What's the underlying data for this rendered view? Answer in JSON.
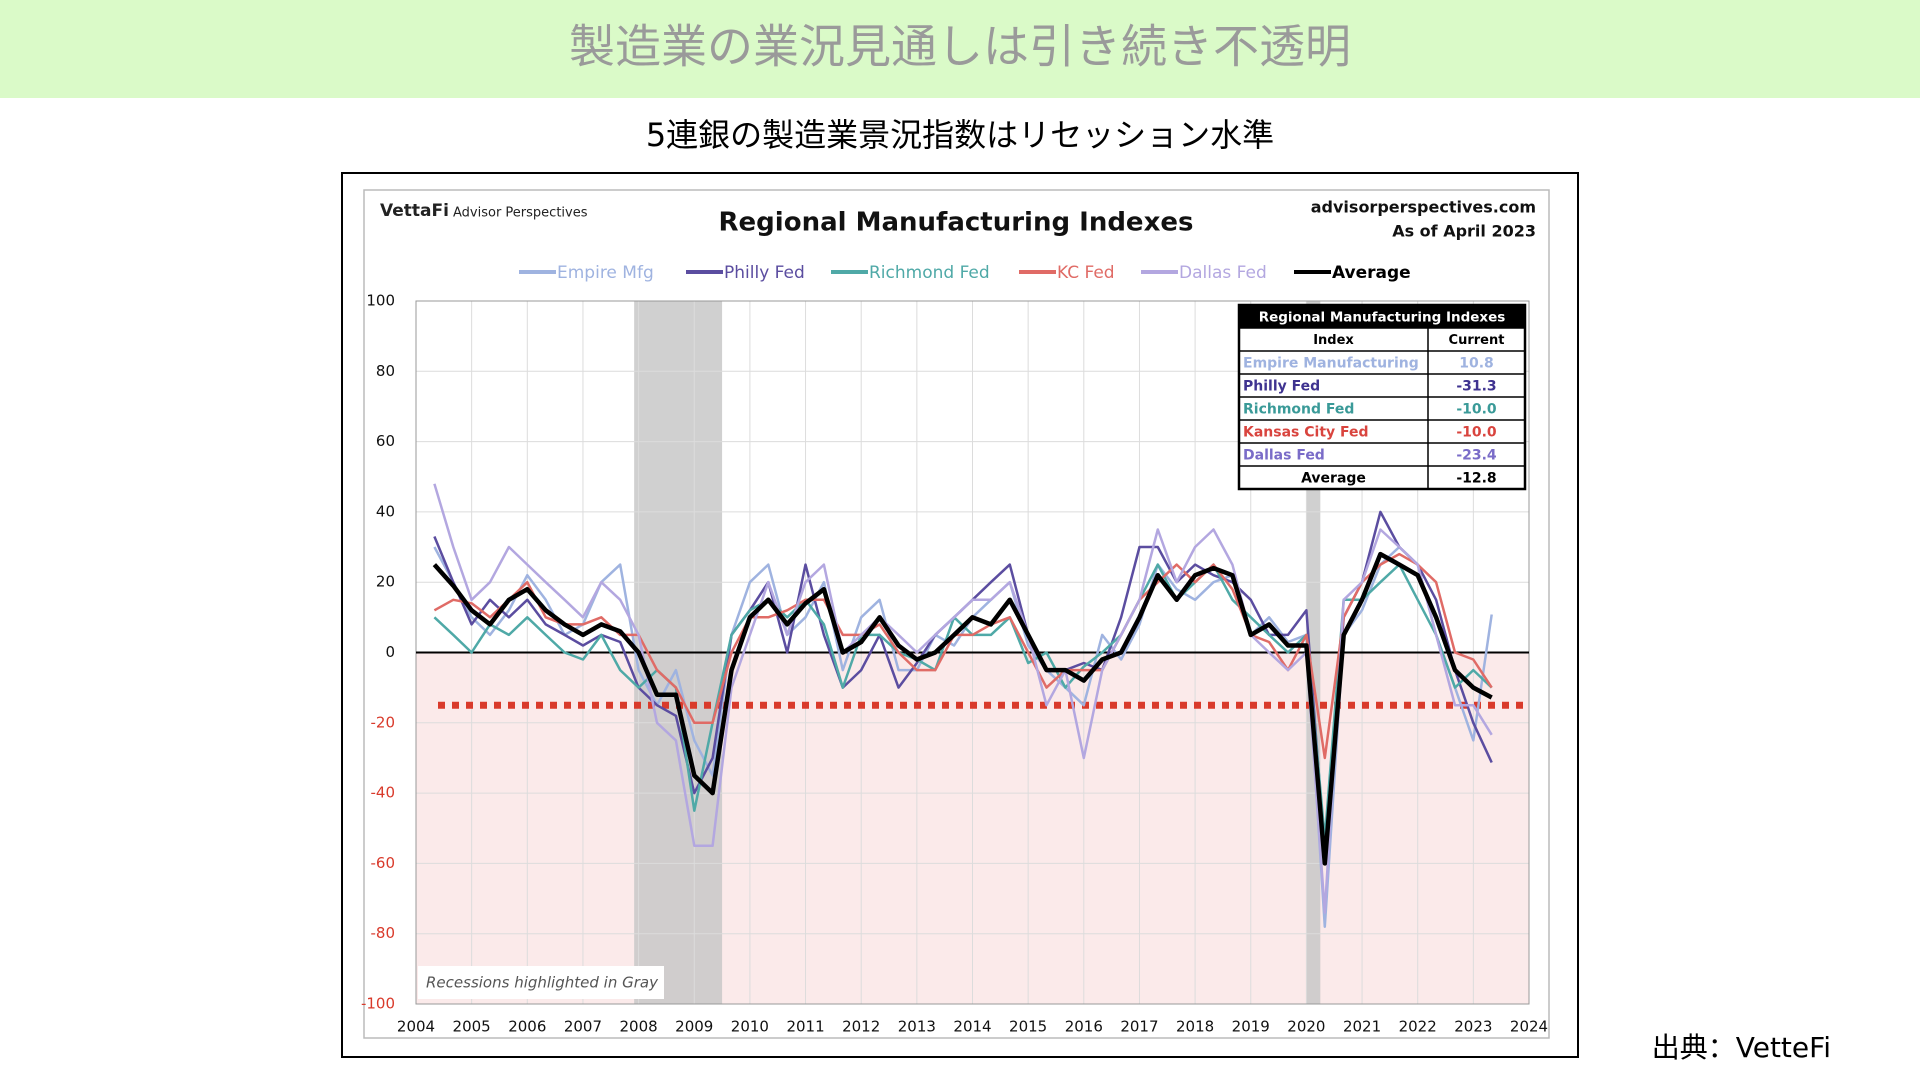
{
  "header": {
    "title": "製造業の業況見通しは引き続き不透明",
    "subtitle": "5連銀の製造業景況指数はリセッション水準",
    "source": "出典：VetteFi"
  },
  "chart_data": {
    "type": "line",
    "brand": "VettaFi",
    "brand_sub": "Advisor Perspectives",
    "title": "Regional Manufacturing Indexes",
    "site": "advisorperspectives.com",
    "asof": "As of April 2023",
    "note": "Recessions highlighted in Gray",
    "x": [
      2004.33,
      2004.67,
      2005,
      2005.33,
      2005.67,
      2006,
      2006.33,
      2006.67,
      2007,
      2007.33,
      2007.67,
      2008,
      2008.33,
      2008.67,
      2009,
      2009.33,
      2009.67,
      2010,
      2010.33,
      2010.67,
      2011,
      2011.33,
      2011.67,
      2012,
      2012.33,
      2012.67,
      2013,
      2013.33,
      2013.67,
      2014,
      2014.33,
      2014.67,
      2015,
      2015.33,
      2015.67,
      2016,
      2016.33,
      2016.67,
      2017,
      2017.33,
      2017.67,
      2018,
      2018.33,
      2018.67,
      2019,
      2019.33,
      2019.67,
      2020,
      2020.33,
      2020.67,
      2021,
      2021.33,
      2021.67,
      2022,
      2022.33,
      2022.67,
      2023,
      2023.33
    ],
    "series": [
      {
        "name": "Empire Mfg",
        "color": "#9fb3e0",
        "width": 2.5,
        "values": [
          30,
          20,
          10,
          5,
          12,
          22,
          15,
          5,
          8,
          20,
          25,
          -5,
          -15,
          -5,
          -25,
          -35,
          5,
          20,
          25,
          5,
          10,
          20,
          -5,
          10,
          15,
          -5,
          -5,
          5,
          2,
          10,
          15,
          20,
          2,
          -5,
          -10,
          -15,
          5,
          -2,
          8,
          25,
          18,
          15,
          20,
          22,
          5,
          10,
          3,
          5,
          -78,
          5,
          12,
          25,
          30,
          25,
          5,
          -10,
          -25,
          10.8
        ]
      },
      {
        "name": "Philly Fed",
        "color": "#5b4da0",
        "width": 2.5,
        "values": [
          33,
          20,
          8,
          15,
          10,
          15,
          8,
          5,
          2,
          5,
          3,
          -10,
          -15,
          -18,
          -40,
          -30,
          5,
          12,
          20,
          0,
          25,
          5,
          -10,
          -5,
          5,
          -10,
          -3,
          5,
          10,
          15,
          20,
          25,
          5,
          -5,
          -5,
          -3,
          -5,
          10,
          30,
          30,
          20,
          25,
          22,
          20,
          15,
          5,
          5,
          12,
          -57,
          10,
          20,
          40,
          30,
          25,
          15,
          -5,
          -20,
          -31.3
        ]
      },
      {
        "name": "Richmond Fed",
        "color": "#4fa9a7",
        "width": 2.5,
        "values": [
          10,
          5,
          0,
          8,
          5,
          10,
          5,
          0,
          -2,
          5,
          -5,
          -10,
          -5,
          -10,
          -45,
          -20,
          5,
          12,
          15,
          10,
          15,
          8,
          -10,
          5,
          5,
          0,
          -2,
          -5,
          10,
          5,
          5,
          10,
          -3,
          0,
          -10,
          -4,
          0,
          5,
          15,
          25,
          15,
          20,
          25,
          15,
          10,
          5,
          0,
          5,
          -53,
          15,
          15,
          20,
          25,
          15,
          5,
          -10,
          -5,
          -10
        ]
      },
      {
        "name": "KC Fed",
        "color": "#e06b66",
        "width": 2.5,
        "values": [
          12,
          15,
          14,
          10,
          15,
          20,
          10,
          8,
          8,
          10,
          5,
          5,
          -5,
          -10,
          -20,
          -20,
          0,
          10,
          10,
          12,
          15,
          15,
          5,
          5,
          8,
          0,
          -5,
          -5,
          5,
          5,
          8,
          10,
          0,
          -10,
          -5,
          -5,
          -5,
          5,
          15,
          20,
          25,
          20,
          25,
          18,
          5,
          3,
          -5,
          5,
          -30,
          10,
          20,
          25,
          28,
          25,
          20,
          0,
          -2,
          -10
        ]
      },
      {
        "name": "Dallas Fed",
        "color": "#b3a7e0",
        "width": 2.5,
        "values": [
          48,
          30,
          15,
          20,
          30,
          25,
          20,
          15,
          10,
          20,
          15,
          5,
          -20,
          -25,
          -55,
          -55,
          -10,
          5,
          20,
          5,
          20,
          25,
          0,
          5,
          10,
          5,
          0,
          5,
          10,
          15,
          15,
          20,
          5,
          -15,
          -5,
          -30,
          -5,
          5,
          15,
          35,
          20,
          30,
          35,
          25,
          5,
          0,
          -5,
          0,
          -74,
          15,
          20,
          35,
          30,
          25,
          5,
          -15,
          -15,
          -23.4
        ]
      },
      {
        "name": "Average",
        "color": "#000000",
        "width": 4.5,
        "values": [
          25,
          19,
          12,
          8,
          15,
          18,
          12,
          8,
          5,
          8,
          6,
          0,
          -12,
          -12,
          -35,
          -40,
          -5,
          10,
          15,
          8,
          14,
          18,
          0,
          3,
          10,
          2,
          -2,
          0,
          5,
          10,
          8,
          15,
          5,
          -5,
          -5,
          -8,
          -2,
          0,
          10,
          22,
          15,
          22,
          24,
          22,
          5,
          8,
          2,
          2,
          -60,
          5,
          15,
          28,
          25,
          22,
          10,
          -5,
          -10,
          -12.8
        ]
      }
    ],
    "xlim": [
      2004,
      2024
    ],
    "xticks": [
      2004,
      2005,
      2006,
      2007,
      2008,
      2009,
      2010,
      2011,
      2012,
      2013,
      2014,
      2015,
      2016,
      2017,
      2018,
      2019,
      2020,
      2021,
      2022,
      2023,
      2024
    ],
    "ylim": [
      -100,
      100
    ],
    "yticks": [
      100,
      80,
      60,
      40,
      20,
      0,
      -20,
      -40,
      -60,
      -80,
      -100
    ],
    "grid": true,
    "recessions": [
      [
        2007.92,
        2009.5
      ],
      [
        2020.0,
        2020.25
      ]
    ],
    "recession_color": "#c8c8c8",
    "negative_fill": "#fbeaea",
    "reference_line": {
      "value": -15,
      "color": "#d93a2b"
    },
    "table": {
      "title": "Regional Manufacturing Indexes",
      "headers": [
        "Index",
        "Current"
      ],
      "rows": [
        {
          "name": "Empire Manufacturing",
          "value": "10.8",
          "color": "#9fb3e0"
        },
        {
          "name": "Philly Fed",
          "value": "-31.3",
          "color": "#3f3390"
        },
        {
          "name": "Richmond Fed",
          "value": "-10.0",
          "color": "#3a9a98"
        },
        {
          "name": "Kansas City Fed",
          "value": "-10.0",
          "color": "#d9443e"
        },
        {
          "name": "Dallas Fed",
          "value": "-23.4",
          "color": "#7a6cc8"
        },
        {
          "name": "Average",
          "value": "-12.8",
          "color": "#000000"
        }
      ]
    }
  }
}
